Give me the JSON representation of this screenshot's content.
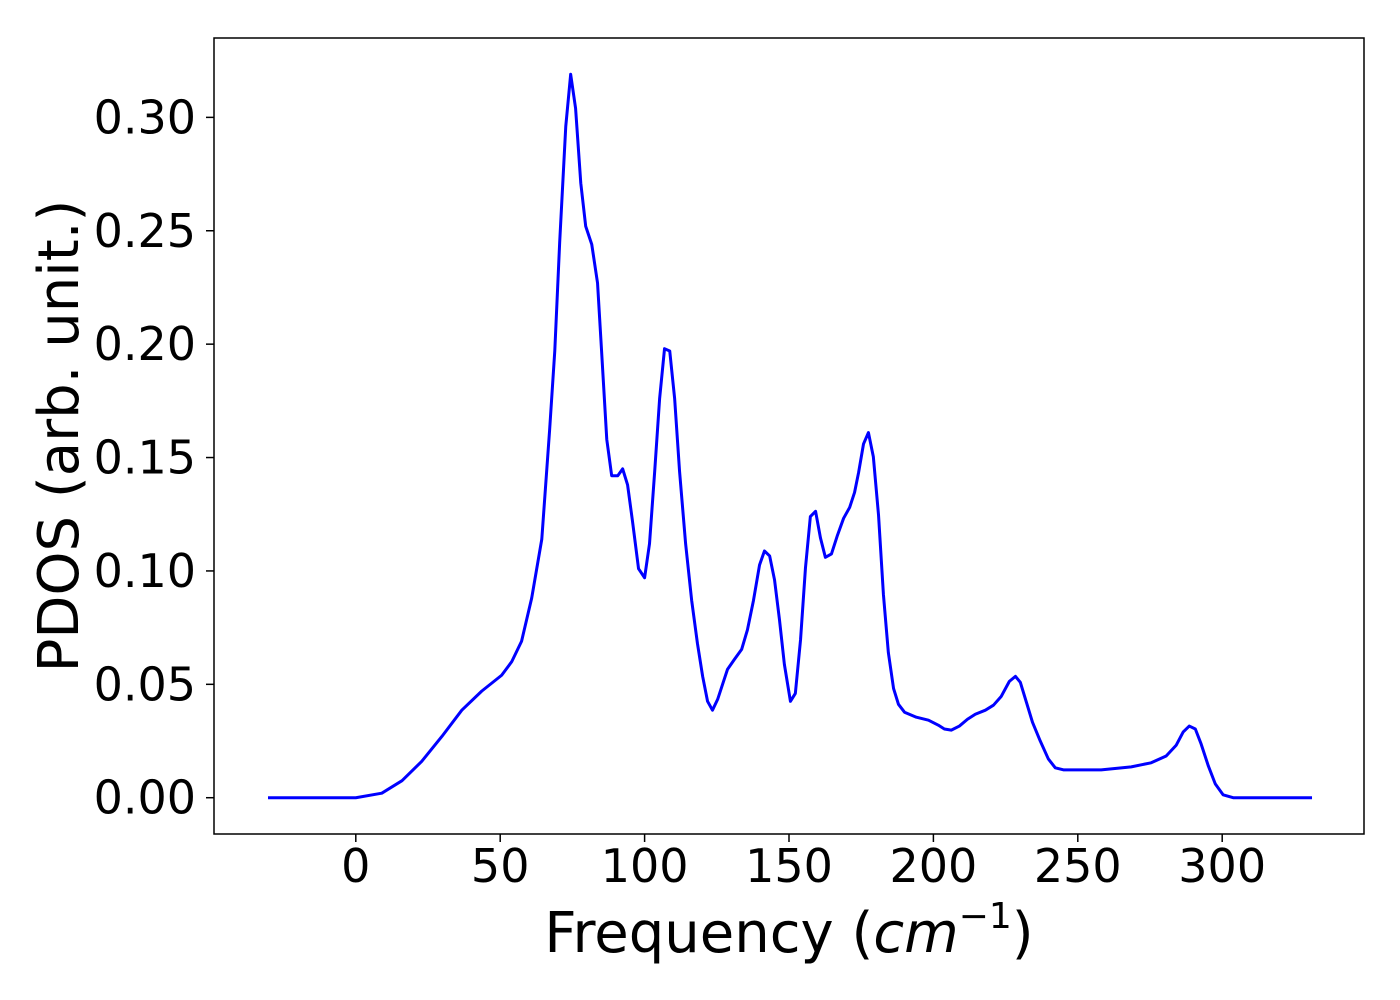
{
  "chart_data": {
    "type": "line",
    "xlabel_parts": [
      "Frequency (",
      "cm",
      "−1",
      ")"
    ],
    "ylabel": "PDOS (arb. unit.)",
    "color": "#0000ff",
    "x": [
      -30.4,
      0,
      9,
      16,
      22.8,
      29.8,
      36.7,
      43.6,
      50.5,
      54,
      57.4,
      60.9,
      64.4,
      67.1,
      68.9,
      70.6,
      72.7,
      74.4,
      76.1,
      77.9,
      79.6,
      81.7,
      83.7,
      85.1,
      86.9,
      88.6,
      90.7,
      92.4,
      94.1,
      95.8,
      97.9,
      100,
      101.7,
      103.5,
      105.2,
      106.9,
      108.7,
      110.4,
      112.1,
      114.2,
      116.3,
      118.3,
      120.1,
      121.8,
      123.5,
      125.3,
      127,
      128.7,
      131.1,
      133.6,
      135.6,
      137.7,
      139.8,
      141.5,
      143.3,
      145,
      146.7,
      148.4,
      150.5,
      152.2,
      154,
      155.7,
      157.4,
      159.2,
      160.9,
      162.6,
      164.7,
      166.8,
      168.9,
      171,
      172.7,
      174.1,
      175.8,
      177.5,
      179.2,
      181,
      182.7,
      184.4,
      186.2,
      187.9,
      190,
      194.1,
      198.3,
      201.7,
      203.8,
      206.2,
      209,
      211.8,
      214.5,
      218,
      220.8,
      223.5,
      226.3,
      228.4,
      230.1,
      232.2,
      234.3,
      237,
      239.8,
      242.2,
      245,
      251.2,
      258.1,
      268.5,
      275.4,
      280.6,
      284.1,
      286.5,
      288.6,
      290.7,
      292.7,
      295.2,
      297.6,
      300.3,
      303.8,
      331.1
    ],
    "values": [
      0,
      0,
      0.002,
      0.0075,
      0.016,
      0.027,
      0.0386,
      0.047,
      0.054,
      0.06,
      0.069,
      0.088,
      0.114,
      0.162,
      0.197,
      0.245,
      0.296,
      0.319,
      0.304,
      0.271,
      0.252,
      0.244,
      0.227,
      0.197,
      0.158,
      0.142,
      0.142,
      0.145,
      0.138,
      0.122,
      0.101,
      0.097,
      0.112,
      0.144,
      0.176,
      0.198,
      0.197,
      0.176,
      0.144,
      0.112,
      0.087,
      0.068,
      0.0535,
      0.0425,
      0.0386,
      0.0434,
      0.05,
      0.0566,
      0.061,
      0.0654,
      0.074,
      0.087,
      0.1026,
      0.1088,
      0.1066,
      0.096,
      0.0785,
      0.0588,
      0.0425,
      0.046,
      0.0697,
      0.1013,
      0.124,
      0.1263,
      0.1145,
      0.106,
      0.1075,
      0.1158,
      0.1232,
      0.128,
      0.1346,
      0.1434,
      0.156,
      0.161,
      0.1504,
      0.1246,
      0.0895,
      0.064,
      0.0482,
      0.0412,
      0.0377,
      0.0355,
      0.0342,
      0.032,
      0.0303,
      0.0298,
      0.0316,
      0.0346,
      0.0368,
      0.0386,
      0.0408,
      0.0447,
      0.0513,
      0.0535,
      0.0509,
      0.0421,
      0.0333,
      0.025,
      0.0171,
      0.0132,
      0.0123,
      0.0123,
      0.0123,
      0.0136,
      0.0154,
      0.0184,
      0.0232,
      0.029,
      0.0316,
      0.0303,
      0.0237,
      0.014,
      0.0061,
      0.0013,
      0,
      0
    ],
    "xlim": [
      -49.1,
      349.1
    ],
    "ylim": [
      -0.016,
      0.335
    ],
    "xticks": [
      0,
      50,
      100,
      150,
      200,
      250,
      300
    ],
    "yticks": [
      {
        "value": 0,
        "label": "0.00"
      },
      {
        "value": 0.05,
        "label": "0.05"
      },
      {
        "value": 0.1,
        "label": "0.10"
      },
      {
        "value": 0.15,
        "label": "0.15"
      },
      {
        "value": 0.2,
        "label": "0.20"
      },
      {
        "value": 0.25,
        "label": "0.25"
      },
      {
        "value": 0.3,
        "label": "0.30"
      }
    ],
    "grid": false
  }
}
